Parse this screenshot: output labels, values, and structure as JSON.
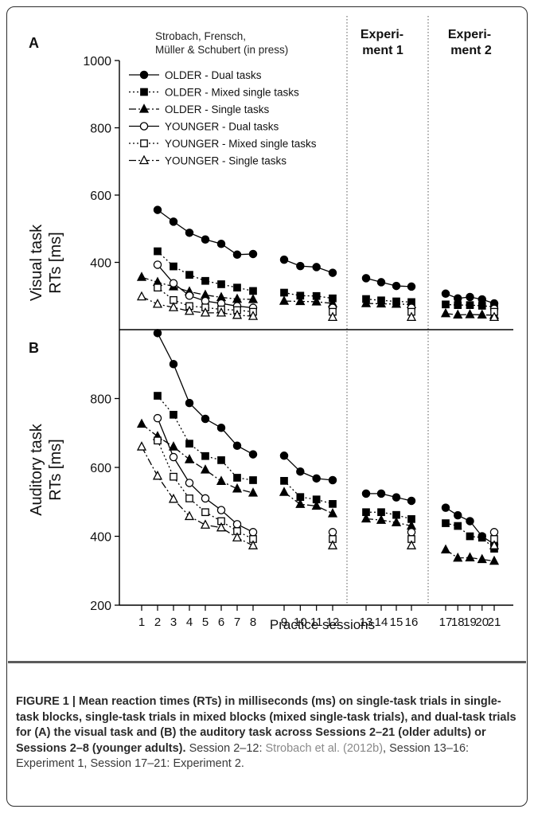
{
  "figure": {
    "caption_bold_1": "FIGURE 1 | Mean reaction times (RTs) in milliseconds (ms) on single-task trials in single-task blocks, single-task trials in mixed blocks (mixed single-task trials), and dual-task trials for (A) the visual task and (B) the auditory task across Sessions 2–21 (older adults) or ",
    "caption_bold_2": "Sessions 2–8 (younger adults).",
    "caption_plain_1": " Session 2–12: ",
    "caption_link": "Strobach et al. (2012b)",
    "caption_plain_2": ", Session 13–16: Experiment 1, Session 17–21: Experiment 2."
  },
  "header_labels": {
    "source_line1": "Strobach, Frensch,",
    "source_line2": "Müller & Schubert (in press)",
    "exp1_line1": "Experi-",
    "exp1_line2": "ment 1",
    "exp2_line1": "Experi-",
    "exp2_line2": "ment 2"
  },
  "chart_data": [
    {
      "panel": "A",
      "type": "line",
      "ylabel": [
        "Visual task",
        "RTs [ms]"
      ],
      "ylim": [
        200,
        1000
      ],
      "yticks": [
        400,
        600,
        800,
        1000
      ],
      "legend_position": "top-left",
      "legend": [
        {
          "label": "OLDER - Dual tasks",
          "marker": "circle-filled",
          "line": "solid"
        },
        {
          "label": "OLDER - Mixed single tasks",
          "marker": "square-filled",
          "line": "dotted"
        },
        {
          "label": "OLDER - Single tasks",
          "marker": "triangle-filled",
          "line": "dashdot"
        },
        {
          "label": "YOUNGER - Dual tasks",
          "marker": "circle-open",
          "line": "solid"
        },
        {
          "label": "YOUNGER - Mixed single tasks",
          "marker": "square-open",
          "line": "dotted"
        },
        {
          "label": "YOUNGER - Single tasks",
          "marker": "triangle-open",
          "line": "dashdot"
        }
      ],
      "series": [
        {
          "name": "OLDER - Dual tasks",
          "marker": "circle-filled",
          "line": "solid",
          "segments": [
            {
              "x": [
                2,
                3,
                4,
                5,
                6,
                7,
                8
              ],
              "y": [
                556,
                521,
                488,
                468,
                455,
                423,
                425
              ]
            },
            {
              "x": [
                9,
                10,
                11,
                12
              ],
              "y": [
                408,
                389,
                386,
                369
              ]
            },
            {
              "x": [
                13,
                14,
                15,
                16
              ],
              "y": [
                353,
                341,
                330,
                328
              ]
            },
            {
              "x": [
                17,
                18,
                19,
                20,
                21
              ],
              "y": [
                307,
                293,
                297,
                290,
                278
              ]
            }
          ]
        },
        {
          "name": "OLDER - Mixed single tasks",
          "marker": "square-filled",
          "line": "dotted",
          "segments": [
            {
              "x": [
                2,
                3,
                4,
                5,
                6,
                7,
                8
              ],
              "y": [
                433,
                388,
                363,
                345,
                335,
                325,
                315
              ]
            },
            {
              "x": [
                9,
                10,
                11,
                12
              ],
              "y": [
                310,
                301,
                300,
                293
              ]
            },
            {
              "x": [
                13,
                14,
                15,
                16
              ],
              "y": [
                291,
                287,
                284,
                282
              ]
            },
            {
              "x": [
                17,
                18,
                19,
                20,
                21
              ],
              "y": [
                275,
                273,
                273,
                271,
                268
              ]
            }
          ]
        },
        {
          "name": "OLDER - Single tasks",
          "marker": "triangle-filled",
          "line": "dashdot",
          "segments": [
            {
              "x": [
                1,
                2,
                3,
                4,
                5,
                6,
                7,
                8
              ],
              "y": [
                356,
                341,
                328,
                313,
                303,
                296,
                291,
                290
              ]
            },
            {
              "x": [
                9,
                10,
                11,
                12
              ],
              "y": [
                285,
                284,
                283,
                278
              ]
            },
            {
              "x": [
                13,
                14,
                15,
                16
              ],
              "y": [
                278,
                277,
                276,
                275
              ]
            },
            {
              "x": [
                17,
                18,
                19,
                20,
                21
              ],
              "y": [
                248,
                244,
                245,
                244,
                243
              ]
            }
          ]
        },
        {
          "name": "YOUNGER - Dual tasks",
          "marker": "circle-open",
          "line": "solid",
          "segments": [
            {
              "x": [
                2,
                3,
                4,
                5,
                6,
                7,
                8
              ],
              "y": [
                393,
                338,
                301,
                285,
                278,
                270,
                265
              ]
            },
            {
              "x": [
                12
              ],
              "y": [
                265
              ]
            },
            {
              "x": [
                16
              ],
              "y": [
                265
              ]
            },
            {
              "x": [
                21
              ],
              "y": [
                262
              ]
            }
          ]
        },
        {
          "name": "YOUNGER - Mixed single tasks",
          "marker": "square-open",
          "line": "dotted",
          "segments": [
            {
              "x": [
                2,
                3,
                4,
                5,
                6,
                7,
                8
              ],
              "y": [
                325,
                288,
                270,
                266,
                260,
                258,
                253
              ]
            },
            {
              "x": [
                12
              ],
              "y": [
                253
              ]
            },
            {
              "x": [
                16
              ],
              "y": [
                253
              ]
            },
            {
              "x": [
                21
              ],
              "y": [
                253
              ]
            }
          ]
        },
        {
          "name": "YOUNGER - Single tasks",
          "marker": "triangle-open",
          "line": "dashdot",
          "segments": [
            {
              "x": [
                1,
                2,
                3,
                4,
                5,
                6,
                7,
                8
              ],
              "y": [
                298,
                276,
                266,
                255,
                250,
                250,
                243,
                240
              ]
            },
            {
              "x": [
                12
              ],
              "y": [
                237
              ]
            },
            {
              "x": [
                16
              ],
              "y": [
                237
              ]
            },
            {
              "x": [
                21
              ],
              "y": [
                237
              ]
            }
          ]
        }
      ]
    },
    {
      "panel": "B",
      "type": "line",
      "ylabel": [
        "Auditory task",
        "RTs [ms]"
      ],
      "xlabel": "Practice sessions",
      "ylim": [
        200,
        1000
      ],
      "yticks": [
        200,
        400,
        600,
        800
      ],
      "xticks": [
        1,
        2,
        3,
        4,
        5,
        6,
        7,
        8,
        9,
        10,
        11,
        12,
        13,
        14,
        15,
        16,
        17,
        18,
        19,
        20,
        21
      ],
      "series": [
        {
          "name": "OLDER - Dual tasks",
          "marker": "circle-filled",
          "line": "solid",
          "segments": [
            {
              "x": [
                2,
                3,
                4,
                5,
                6,
                7,
                8
              ],
              "y": [
                990,
                900,
                787,
                741,
                715,
                663,
                638
              ]
            },
            {
              "x": [
                9,
                10,
                11,
                12
              ],
              "y": [
                634,
                588,
                568,
                563
              ]
            },
            {
              "x": [
                13,
                14,
                15,
                16
              ],
              "y": [
                524,
                524,
                513,
                503
              ]
            },
            {
              "x": [
                17,
                18,
                19,
                20,
                21
              ],
              "y": [
                483,
                461,
                444,
                400,
                377
              ]
            }
          ]
        },
        {
          "name": "OLDER - Mixed single tasks",
          "marker": "square-filled",
          "line": "dotted",
          "segments": [
            {
              "x": [
                2,
                3,
                4,
                5,
                6,
                7,
                8
              ],
              "y": [
                808,
                753,
                669,
                633,
                621,
                570,
                563
              ]
            },
            {
              "x": [
                9,
                10,
                11,
                12
              ],
              "y": [
                561,
                514,
                507,
                494
              ]
            },
            {
              "x": [
                13,
                14,
                15,
                16
              ],
              "y": [
                470,
                470,
                462,
                450
              ]
            },
            {
              "x": [
                17,
                18,
                19,
                20,
                21
              ],
              "y": [
                438,
                430,
                400,
                396,
                364
              ]
            }
          ]
        },
        {
          "name": "OLDER - Single tasks",
          "marker": "triangle-filled",
          "line": "dashdot",
          "segments": [
            {
              "x": [
                1,
                2,
                3,
                4,
                5,
                6,
                7,
                8
              ],
              "y": [
                726,
                690,
                660,
                623,
                593,
                560,
                538,
                526
              ]
            },
            {
              "x": [
                9,
                10,
                11,
                12
              ],
              "y": [
                528,
                493,
                488,
                466
              ]
            },
            {
              "x": [
                13,
                14,
                15,
                16
              ],
              "y": [
                451,
                447,
                440,
                430
              ]
            },
            {
              "x": [
                17,
                18,
                19,
                20,
                21
              ],
              "y": [
                361,
                337,
                338,
                333,
                328
              ]
            }
          ]
        },
        {
          "name": "YOUNGER - Dual tasks",
          "marker": "circle-open",
          "line": "solid",
          "segments": [
            {
              "x": [
                2,
                3,
                4,
                5,
                6,
                7,
                8
              ],
              "y": [
                743,
                630,
                555,
                510,
                476,
                435,
                412
              ]
            },
            {
              "x": [
                12
              ],
              "y": [
                412
              ]
            },
            {
              "x": [
                16
              ],
              "y": [
                412
              ]
            },
            {
              "x": [
                21
              ],
              "y": [
                412
              ]
            }
          ]
        },
        {
          "name": "YOUNGER - Mixed single tasks",
          "marker": "square-open",
          "line": "dotted",
          "segments": [
            {
              "x": [
                2,
                3,
                4,
                5,
                6,
                7,
                8
              ],
              "y": [
                678,
                573,
                510,
                470,
                444,
                415,
                392
              ]
            },
            {
              "x": [
                12
              ],
              "y": [
                392
              ]
            },
            {
              "x": [
                16
              ],
              "y": [
                392
              ]
            },
            {
              "x": [
                21
              ],
              "y": [
                392
              ]
            }
          ]
        },
        {
          "name": "YOUNGER - Single tasks",
          "marker": "triangle-open",
          "line": "dashdot",
          "segments": [
            {
              "x": [
                1,
                2,
                3,
                4,
                5,
                6,
                7,
                8
              ],
              "y": [
                660,
                575,
                508,
                458,
                433,
                425,
                396,
                373
              ]
            },
            {
              "x": [
                12
              ],
              "y": [
                373
              ]
            },
            {
              "x": [
                16
              ],
              "y": [
                373
              ]
            },
            {
              "x": [
                21
              ],
              "y": [
                373
              ]
            }
          ]
        }
      ]
    }
  ]
}
